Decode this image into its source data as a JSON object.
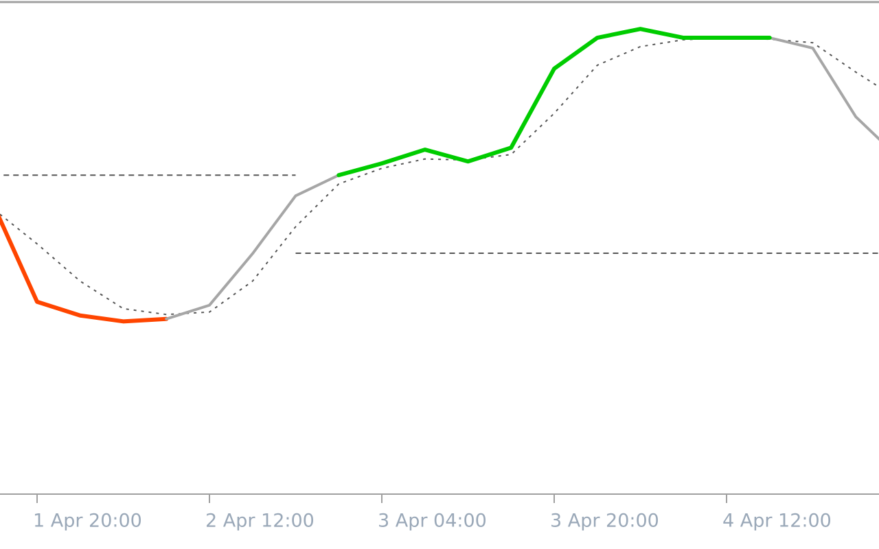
{
  "chart_data": {
    "type": "line",
    "categories": [
      null,
      "1 Apr 20:00",
      null,
      null,
      null,
      "2 Apr 12:00",
      null,
      null,
      null,
      "3 Apr 04:00",
      null,
      null,
      null,
      "3 Apr 20:00",
      null,
      null,
      null,
      "4 Apr 12:00",
      null,
      null,
      null,
      null
    ],
    "ylim": [
      0,
      100
    ],
    "series": [
      {
        "color": "#ff4500",
        "style": "solid",
        "width": 6,
        "values": [
          58.7,
          39.2,
          36.4,
          35.2,
          35.7,
          null,
          null,
          null,
          null,
          null,
          null,
          null,
          null,
          null,
          null,
          null,
          null,
          null,
          null,
          null,
          null,
          null
        ]
      },
      {
        "color": "#a6a6a6",
        "style": "solid",
        "width": 4,
        "values": [
          null,
          null,
          null,
          null,
          35.7,
          38.5,
          49.0,
          60.8,
          65.0,
          null,
          null,
          null,
          null,
          null,
          null,
          null,
          null,
          null,
          93.0,
          90.9,
          76.9,
          68.5
        ]
      },
      {
        "color": "#00cc00",
        "style": "solid",
        "width": 6,
        "values": [
          null,
          null,
          null,
          null,
          null,
          null,
          null,
          null,
          65.0,
          67.4,
          70.2,
          67.8,
          70.6,
          86.7,
          93.0,
          94.8,
          93.0,
          93.0,
          93.0,
          null,
          null,
          null
        ]
      },
      {
        "color": "#555555",
        "style": "dotted",
        "width": 2,
        "values": [
          58.0,
          51.0,
          43.4,
          37.8,
          36.6,
          37.1,
          43.4,
          54.5,
          63.2,
          66.4,
          68.3,
          68.1,
          69.2,
          77.6,
          87.4,
          91.2,
          92.6,
          93.0,
          92.7,
          92.0,
          86.0,
          80.4
        ]
      },
      {
        "color": "#555555",
        "style": "dashed",
        "width": 2,
        "values": [
          65.0,
          65.0,
          65.0,
          65.0,
          65.0,
          65.0,
          65.0,
          65.0,
          null,
          null,
          null,
          null,
          null,
          null,
          null,
          null,
          null,
          null,
          null,
          null,
          null,
          null
        ]
      },
      {
        "color": "#555555",
        "style": "dashed",
        "width": 2,
        "values": [
          null,
          null,
          null,
          null,
          null,
          null,
          null,
          49.1,
          49.1,
          49.1,
          49.1,
          49.1,
          49.1,
          49.1,
          49.1,
          49.1,
          49.1,
          49.1,
          49.1,
          49.1,
          49.1,
          49.1
        ]
      }
    ]
  }
}
